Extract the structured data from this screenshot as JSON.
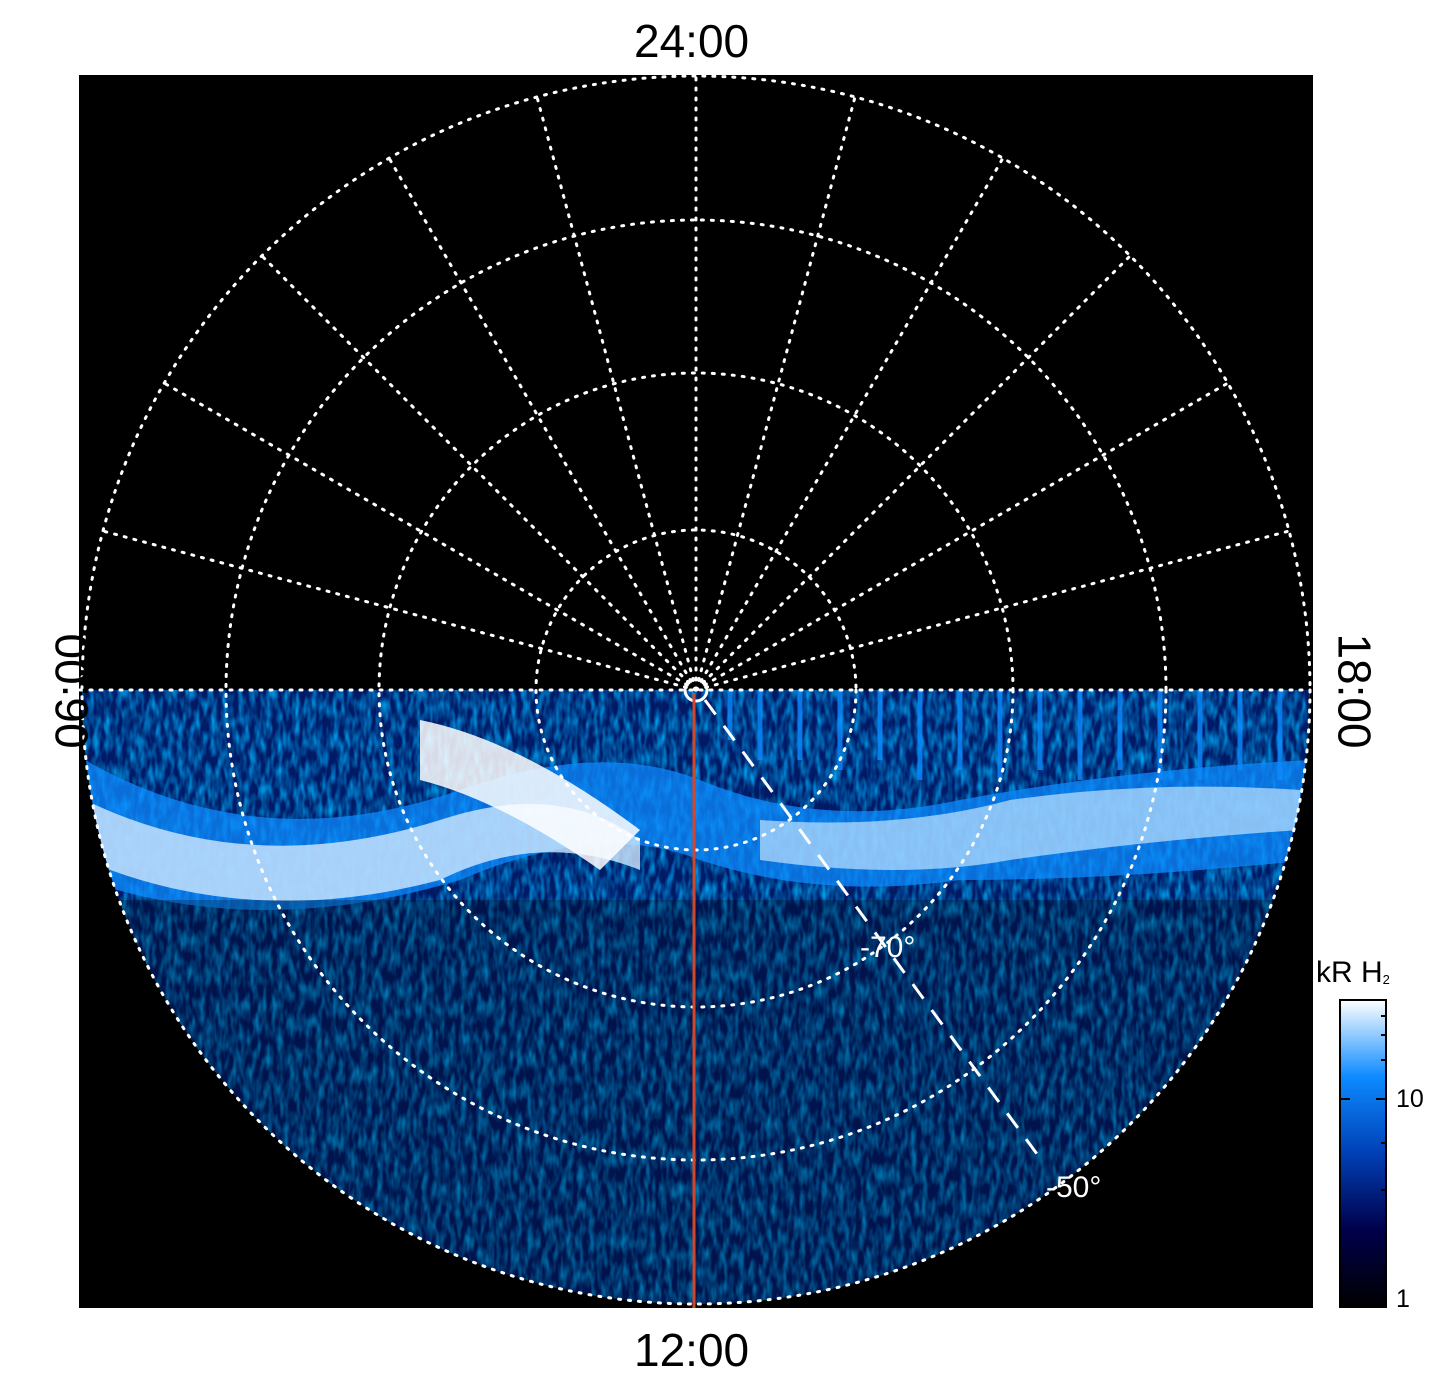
{
  "local_time_labels": {
    "top": "24:00",
    "bottom": "12:00",
    "left": "06:00",
    "right": "18:00"
  },
  "latitude_labels": [
    "-70°",
    "-50°"
  ],
  "colorbar": {
    "title": "kR H",
    "title_subscript": "2",
    "scale": "log",
    "range": [
      1,
      30
    ],
    "tick_labels": [
      "10",
      "1"
    ],
    "colors": [
      "#000000",
      "#00004a",
      "#003fb5",
      "#0d8bff",
      "#ffffff"
    ]
  },
  "colors": {
    "background": "#000000",
    "grid": "#ffffff",
    "meridian_line": "#d2462a"
  }
}
